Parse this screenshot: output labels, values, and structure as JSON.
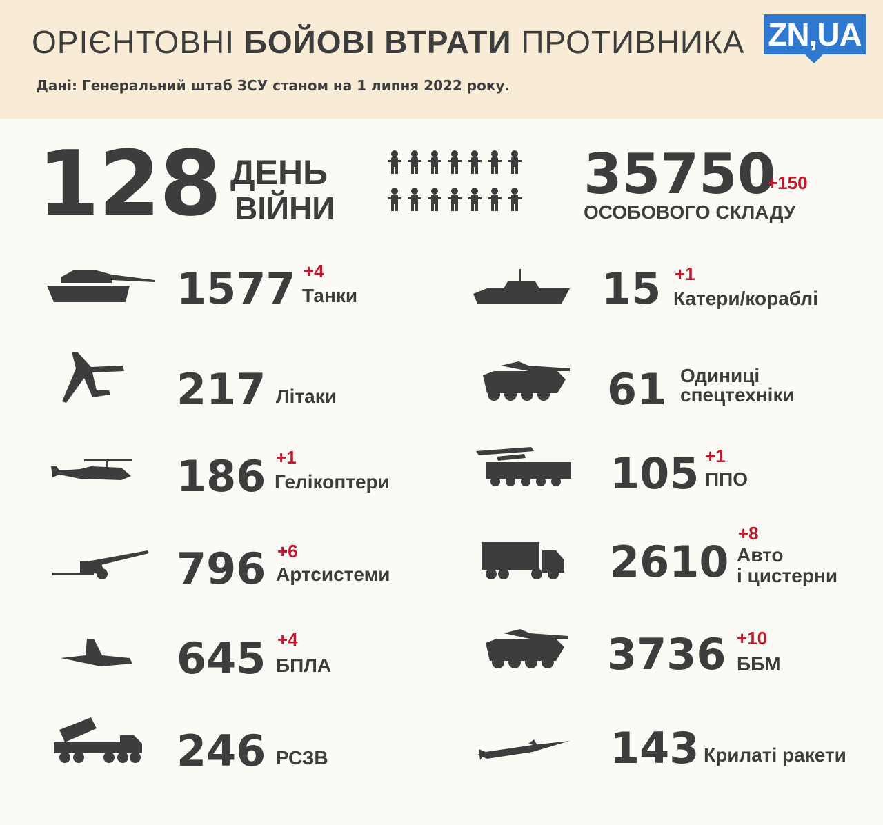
{
  "header": {
    "title_light_1": "ОРІЄНТОВНІ ",
    "title_bold": "БОЙОВІ ВТРАТИ",
    "title_light_2": " ПРОТИВНИКА",
    "subtitle": "Дані: Генеральний штаб ЗСУ станом на 1 липня 2022 року.",
    "logo": "ZN,UA"
  },
  "colors": {
    "header_bg": "#f9ecd7",
    "page_bg": "#fcfaf5",
    "text": "#3d3d3d",
    "delta": "#c2182b",
    "logo": "#2f78d0"
  },
  "day": {
    "number": "128",
    "line1": "ДЕНЬ",
    "line2": "ВІЙНИ"
  },
  "personnel": {
    "value": "35750",
    "delta": "+150",
    "label": "ОСОБОВОГО СКЛАДУ",
    "icon": "soldiers-icon"
  },
  "left": [
    {
      "icon": "tank-icon",
      "value": "1577",
      "delta": "+4",
      "label": "Танки"
    },
    {
      "icon": "plane-icon",
      "value": "217",
      "delta": "",
      "label": "Літаки"
    },
    {
      "icon": "helicopter-icon",
      "value": "186",
      "delta": "+1",
      "label": "Гелікоптери"
    },
    {
      "icon": "artillery-icon",
      "value": "796",
      "delta": "+6",
      "label": "Артсистеми"
    },
    {
      "icon": "drone-icon",
      "value": "645",
      "delta": "+4",
      "label": "БПЛА"
    },
    {
      "icon": "mlrs-icon",
      "value": "246",
      "delta": "",
      "label": "РСЗВ"
    }
  ],
  "right": [
    {
      "icon": "ship-icon",
      "value": "15",
      "delta": "+1",
      "label": "Катери/кораблі"
    },
    {
      "icon": "special-vehicle-icon",
      "value": "61",
      "delta": "",
      "label": "Одиниці",
      "label2": "спецтехніки"
    },
    {
      "icon": "air-defense-icon",
      "value": "105",
      "delta": "+1",
      "label": "ППО"
    },
    {
      "icon": "truck-icon",
      "value": "2610",
      "delta": "+8",
      "label": "Авто",
      "label2": "і цистерни"
    },
    {
      "icon": "ifv-icon",
      "value": "3736",
      "delta": "+10",
      "label": "ББМ"
    },
    {
      "icon": "cruise-missile-icon",
      "value": "143",
      "delta": "",
      "label": "Крилаті ракети"
    }
  ]
}
